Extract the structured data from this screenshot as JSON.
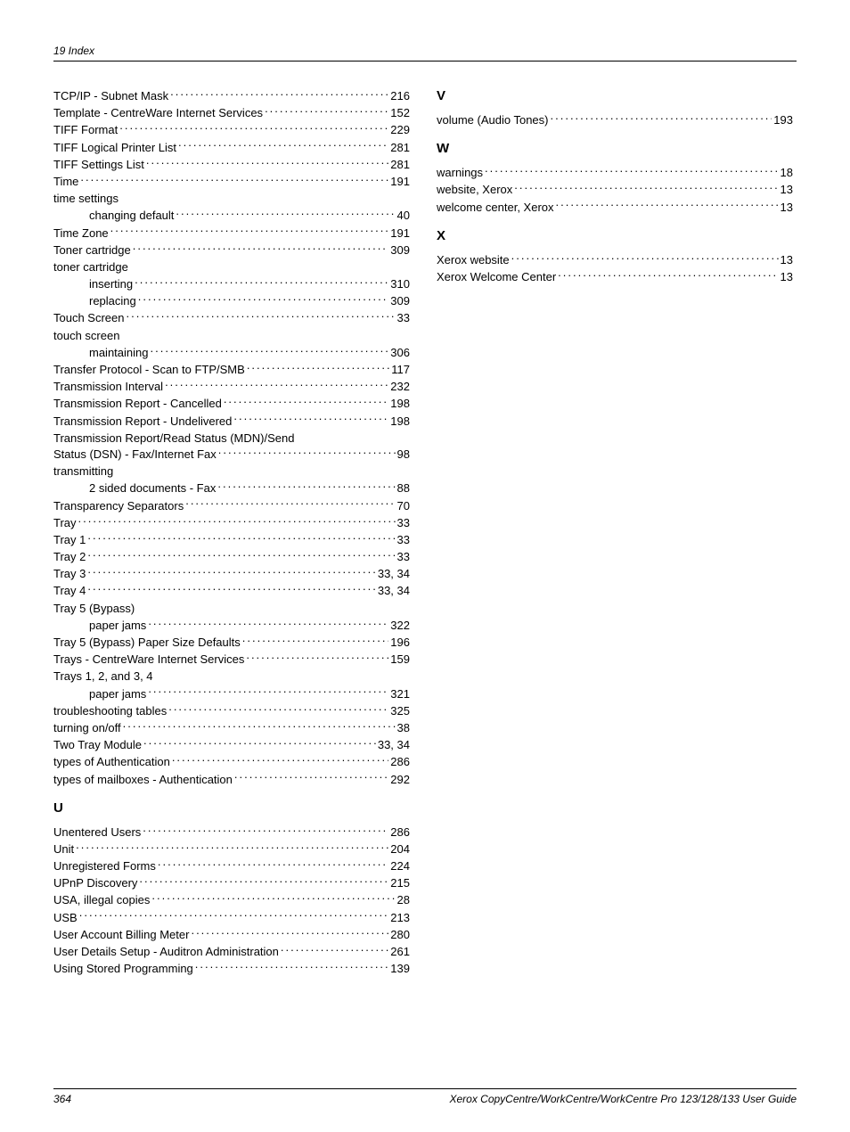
{
  "header": "19 Index",
  "footer": {
    "pageNumber": "364",
    "title": "Xerox CopyCentre/WorkCentre/WorkCentre Pro 123/128/133 User Guide"
  },
  "leftColumn": {
    "entries1": [
      {
        "label": "TCP/IP - Subnet Mask",
        "page": "216",
        "indent": false
      },
      {
        "label": "Template - CentreWare Internet Services",
        "page": "152",
        "indent": false
      },
      {
        "label": "TIFF Format",
        "page": "229",
        "indent": false
      },
      {
        "label": "TIFF Logical Printer List",
        "page": "281",
        "indent": false
      },
      {
        "label": "TIFF Settings List",
        "page": "281",
        "indent": false
      },
      {
        "label": "Time",
        "page": "191",
        "indent": false
      }
    ],
    "timeSettings": "time settings",
    "entries2": [
      {
        "label": "changing default",
        "page": "40",
        "indent": true
      },
      {
        "label": "Time Zone",
        "page": "191",
        "indent": false
      },
      {
        "label": "Toner cartridge",
        "page": "309",
        "indent": false
      }
    ],
    "tonerCartridge": "toner cartridge",
    "entries3": [
      {
        "label": "inserting",
        "page": "310",
        "indent": true
      },
      {
        "label": "replacing",
        "page": "309",
        "indent": true
      },
      {
        "label": "Touch Screen",
        "page": "33",
        "indent": false
      }
    ],
    "touchScreen": "touch screen",
    "entries4": [
      {
        "label": "maintaining",
        "page": "306",
        "indent": true
      },
      {
        "label": "Transfer Protocol - Scan to FTP/SMB",
        "page": "117",
        "indent": false
      },
      {
        "label": "Transmission Interval",
        "page": "232",
        "indent": false
      },
      {
        "label": "Transmission Report - Cancelled",
        "page": "198",
        "indent": false
      },
      {
        "label": "Transmission Report - Undelivered",
        "page": "198",
        "indent": false
      }
    ],
    "multiline1": {
      "line1": "Transmission Report/Read Status (MDN)/Send",
      "line2": "Status (DSN) - Fax/Internet Fax",
      "page": "98"
    },
    "transmitting": "transmitting",
    "entries5": [
      {
        "label": "2 sided documents - Fax",
        "page": "88",
        "indent": true
      },
      {
        "label": "Transparency Separators",
        "page": "70",
        "indent": false
      },
      {
        "label": "Tray",
        "page": "33",
        "indent": false
      },
      {
        "label": "Tray 1",
        "page": "33",
        "indent": false
      },
      {
        "label": "Tray 2",
        "page": "33",
        "indent": false
      },
      {
        "label": "Tray 3",
        "page": "33, 34",
        "indent": false
      },
      {
        "label": "Tray 4",
        "page": "33, 34",
        "indent": false
      }
    ],
    "tray5": "Tray 5 (Bypass)",
    "entries6": [
      {
        "label": "paper jams",
        "page": "322",
        "indent": true
      },
      {
        "label": "Tray 5 (Bypass) Paper Size Defaults",
        "page": "196",
        "indent": false
      },
      {
        "label": "Trays - CentreWare Internet Services",
        "page": "159",
        "indent": false
      }
    ],
    "trays1234": "Trays 1, 2, and 3, 4",
    "entries7": [
      {
        "label": "paper jams",
        "page": "321",
        "indent": true
      },
      {
        "label": "troubleshooting tables",
        "page": "325",
        "indent": false
      },
      {
        "label": "turning on/off",
        "page": "38",
        "indent": false
      },
      {
        "label": "Two Tray Module",
        "page": "33, 34",
        "indent": false
      },
      {
        "label": "types of Authentication",
        "page": "286",
        "indent": false
      },
      {
        "label": "types of mailboxes - Authentication",
        "page": "292",
        "indent": false
      }
    ],
    "letterU": "U",
    "entries8": [
      {
        "label": "Unentered Users",
        "page": "286",
        "indent": false
      },
      {
        "label": "Unit",
        "page": "204",
        "indent": false
      },
      {
        "label": "Unregistered Forms",
        "page": "224",
        "indent": false
      },
      {
        "label": "UPnP Discovery",
        "page": "215",
        "indent": false
      },
      {
        "label": "USA, illegal copies",
        "page": "28",
        "indent": false
      },
      {
        "label": "USB",
        "page": "213",
        "indent": false
      },
      {
        "label": "User Account Billing Meter",
        "page": "280",
        "indent": false
      },
      {
        "label": "User Details Setup - Auditron Administration",
        "page": "261",
        "indent": false
      },
      {
        "label": "Using Stored Programming",
        "page": "139",
        "indent": false
      }
    ]
  },
  "rightColumn": {
    "letterV": "V",
    "entriesV": [
      {
        "label": "volume (Audio Tones)",
        "page": "193",
        "indent": false
      }
    ],
    "letterW": "W",
    "entriesW": [
      {
        "label": "warnings",
        "page": "18",
        "indent": false
      },
      {
        "label": "website, Xerox",
        "page": "13",
        "indent": false
      },
      {
        "label": "welcome center, Xerox",
        "page": "13",
        "indent": false
      }
    ],
    "letterX": "X",
    "entriesX": [
      {
        "label": "Xerox website",
        "page": "13",
        "indent": false
      },
      {
        "label": "Xerox Welcome Center",
        "page": "13",
        "indent": false
      }
    ]
  }
}
